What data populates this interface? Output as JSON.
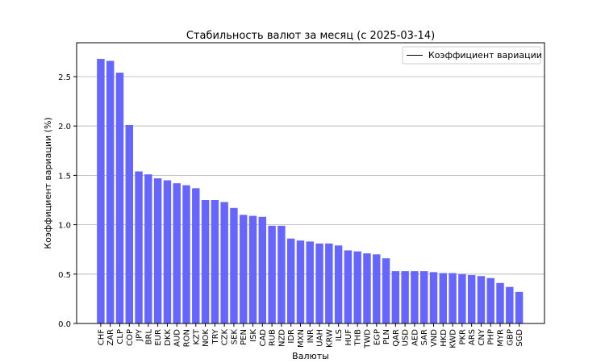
{
  "chart_data": {
    "type": "bar",
    "title": "Стабильность валют за месяц (с 2025-03-14)",
    "xlabel": "Валюты",
    "ylabel": "Коэффициент вариации (%)",
    "ylim": [
      0,
      2.8
    ],
    "yticks": [
      0.0,
      0.5,
      1.0,
      1.5,
      2.0,
      2.5
    ],
    "ytick_labels": [
      "0.0",
      "0.5",
      "1.0",
      "1.5",
      "2.0",
      "2.5"
    ],
    "grid": "horizontal",
    "legend": {
      "position": "top-right",
      "entries": [
        "Коэффициент вариации"
      ]
    },
    "bar_color": "#6666ff",
    "categories": [
      "CHF",
      "ZAR",
      "CLP",
      "COP",
      "JPY",
      "BRL",
      "EUR",
      "DKK",
      "AUD",
      "RON",
      "KZT",
      "NOK",
      "TRY",
      "CZK",
      "SEK",
      "PEN",
      "ISK",
      "CAD",
      "RUB",
      "NZD",
      "IDR",
      "MXN",
      "INR",
      "UAH",
      "KRW",
      "ILS",
      "HUF",
      "THB",
      "TWD",
      "EGP",
      "PLN",
      "QAR",
      "USD",
      "AED",
      "SAR",
      "VND",
      "HKD",
      "KWD",
      "PKR",
      "ARS",
      "CNY",
      "PHP",
      "MYR",
      "GBP",
      "SGD"
    ],
    "values": [
      2.68,
      2.66,
      2.54,
      2.01,
      1.54,
      1.51,
      1.47,
      1.45,
      1.42,
      1.4,
      1.37,
      1.25,
      1.25,
      1.23,
      1.17,
      1.1,
      1.09,
      1.08,
      0.99,
      0.99,
      0.86,
      0.84,
      0.83,
      0.81,
      0.81,
      0.79,
      0.74,
      0.73,
      0.71,
      0.7,
      0.66,
      0.53,
      0.53,
      0.53,
      0.53,
      0.52,
      0.51,
      0.51,
      0.5,
      0.49,
      0.48,
      0.46,
      0.41,
      0.37,
      0.32
    ]
  }
}
